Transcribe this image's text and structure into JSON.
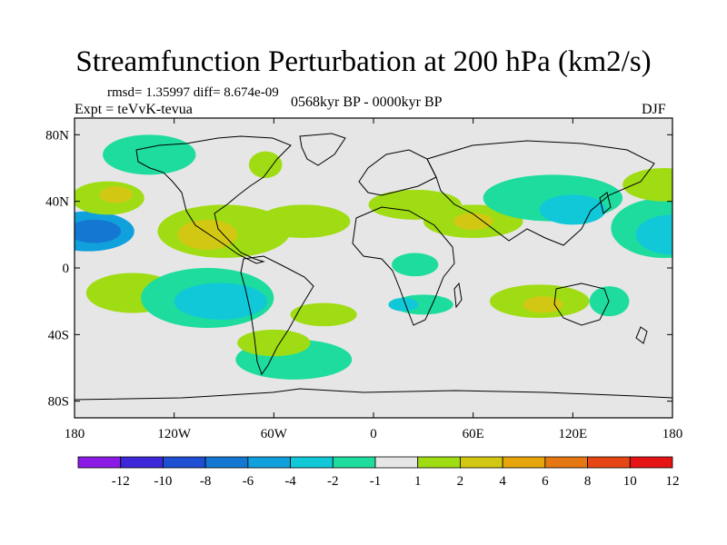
{
  "header": {
    "title": "Streamfunction Perturbation at 200 hPa (km2/s)",
    "stats": "rmsd= 1.35997 diff= 8.674e-09",
    "left_label": "Expt = teVvK-tevua",
    "center_label": "0568kyr BP - 0000kyr BP",
    "right_label": "DJF"
  },
  "chart_data": {
    "type": "heatmap",
    "title": "Streamfunction Perturbation at 200 hPa (km2/s)",
    "xlabel": "",
    "ylabel": "",
    "xlim": [
      -180,
      180
    ],
    "ylim": [
      -90,
      90
    ],
    "x_ticks": [
      {
        "value": -180,
        "label": "180"
      },
      {
        "value": -120,
        "label": "120W"
      },
      {
        "value": -60,
        "label": "60W"
      },
      {
        "value": 0,
        "label": "0"
      },
      {
        "value": 60,
        "label": "60E"
      },
      {
        "value": 120,
        "label": "120E"
      },
      {
        "value": 180,
        "label": "180"
      }
    ],
    "y_ticks": [
      {
        "value": 80,
        "label": "80N"
      },
      {
        "value": 40,
        "label": "40N"
      },
      {
        "value": 0,
        "label": "0"
      },
      {
        "value": -40,
        "label": "40S"
      },
      {
        "value": -80,
        "label": "80S"
      }
    ],
    "colorbar": {
      "labels": [
        "-12",
        "-10",
        "-8",
        "-6",
        "-4",
        "-2",
        "-1",
        "1",
        "2",
        "4",
        "6",
        "8",
        "10",
        "12"
      ],
      "colors": [
        "#8c1ae6",
        "#3c28d8",
        "#1e4fd2",
        "#1478d2",
        "#10a0dc",
        "#10c8d8",
        "#1edc9e",
        "#e6e6e6",
        "#a0dc14",
        "#d2c814",
        "#e6a50a",
        "#e67814",
        "#e64614",
        "#e61414"
      ]
    },
    "regions": [
      {
        "lon": -172,
        "lat": 22,
        "rx": 28,
        "ry": 12,
        "level": -4
      },
      {
        "lon": -168,
        "lat": 22,
        "rx": 16,
        "ry": 7,
        "level": -6
      },
      {
        "lon": -135,
        "lat": 68,
        "rx": 28,
        "ry": 12,
        "level": -1
      },
      {
        "lon": -160,
        "lat": 42,
        "rx": 22,
        "ry": 10,
        "level": 2
      },
      {
        "lon": -155,
        "lat": 44,
        "rx": 10,
        "ry": 5,
        "level": 4
      },
      {
        "lon": -65,
        "lat": 62,
        "rx": 10,
        "ry": 8,
        "level": 2
      },
      {
        "lon": -90,
        "lat": 22,
        "rx": 40,
        "ry": 16,
        "level": 2
      },
      {
        "lon": -100,
        "lat": 20,
        "rx": 18,
        "ry": 9,
        "level": 4
      },
      {
        "lon": -42,
        "lat": 28,
        "rx": 28,
        "ry": 10,
        "level": 2
      },
      {
        "lon": 25,
        "lat": 38,
        "rx": 28,
        "ry": 9,
        "level": 2
      },
      {
        "lon": 60,
        "lat": 28,
        "rx": 30,
        "ry": 10,
        "level": 2
      },
      {
        "lon": 60,
        "lat": 28,
        "rx": 12,
        "ry": 5,
        "level": 4
      },
      {
        "lon": 108,
        "lat": 42,
        "rx": 42,
        "ry": 14,
        "level": -1
      },
      {
        "lon": 120,
        "lat": 35,
        "rx": 20,
        "ry": 9,
        "level": -2
      },
      {
        "lon": 175,
        "lat": 24,
        "rx": 32,
        "ry": 18,
        "level": -1
      },
      {
        "lon": 180,
        "lat": 20,
        "rx": 22,
        "ry": 12,
        "level": -2
      },
      {
        "lon": 175,
        "lat": 50,
        "rx": 25,
        "ry": 10,
        "level": 2
      },
      {
        "lon": -145,
        "lat": -15,
        "rx": 28,
        "ry": 12,
        "level": 2
      },
      {
        "lon": -100,
        "lat": -18,
        "rx": 40,
        "ry": 18,
        "level": -1
      },
      {
        "lon": -92,
        "lat": -20,
        "rx": 28,
        "ry": 11,
        "level": -2
      },
      {
        "lon": -30,
        "lat": -28,
        "rx": 20,
        "ry": 7,
        "level": 2
      },
      {
        "lon": 25,
        "lat": 2,
        "rx": 14,
        "ry": 7,
        "level": -1
      },
      {
        "lon": 30,
        "lat": -22,
        "rx": 18,
        "ry": 6,
        "level": -1
      },
      {
        "lon": 18,
        "lat": -22,
        "rx": 9,
        "ry": 4,
        "level": -2
      },
      {
        "lon": 100,
        "lat": -20,
        "rx": 30,
        "ry": 10,
        "level": 2
      },
      {
        "lon": 102,
        "lat": -22,
        "rx": 12,
        "ry": 5,
        "level": 4
      },
      {
        "lon": 142,
        "lat": -20,
        "rx": 12,
        "ry": 9,
        "level": -1
      },
      {
        "lon": -48,
        "lat": -55,
        "rx": 35,
        "ry": 12,
        "level": -1
      },
      {
        "lon": -60,
        "lat": -45,
        "rx": 22,
        "ry": 8,
        "level": 2
      }
    ]
  }
}
